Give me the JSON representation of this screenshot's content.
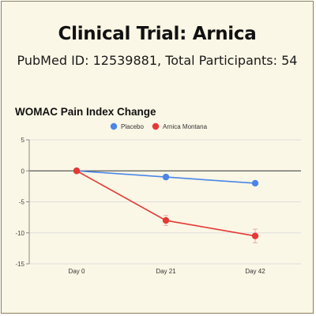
{
  "header": {
    "title": "Clinical Trial: Arnica",
    "subtitle": "PubMed ID: 12539881, Total Participants: 54"
  },
  "chart_data": {
    "type": "line",
    "title": "WOMAC Pain Index Change",
    "xlabel": "",
    "ylabel": "",
    "categories": [
      "Day 0",
      "Day 21",
      "Day 42"
    ],
    "ylim": [
      -15,
      5
    ],
    "yticks": [
      5,
      0,
      -5,
      -10,
      -15
    ],
    "grid": true,
    "legend_position": "top-center",
    "series": [
      {
        "name": "Placebo",
        "color": "#4a86e8",
        "values": [
          0,
          -1,
          -2
        ],
        "error": [
          0,
          0,
          0
        ]
      },
      {
        "name": "Arnica Montana",
        "color": "#e53935",
        "values": [
          0,
          -8,
          -10.5
        ],
        "error": [
          0,
          0.8,
          1.1
        ]
      }
    ]
  }
}
